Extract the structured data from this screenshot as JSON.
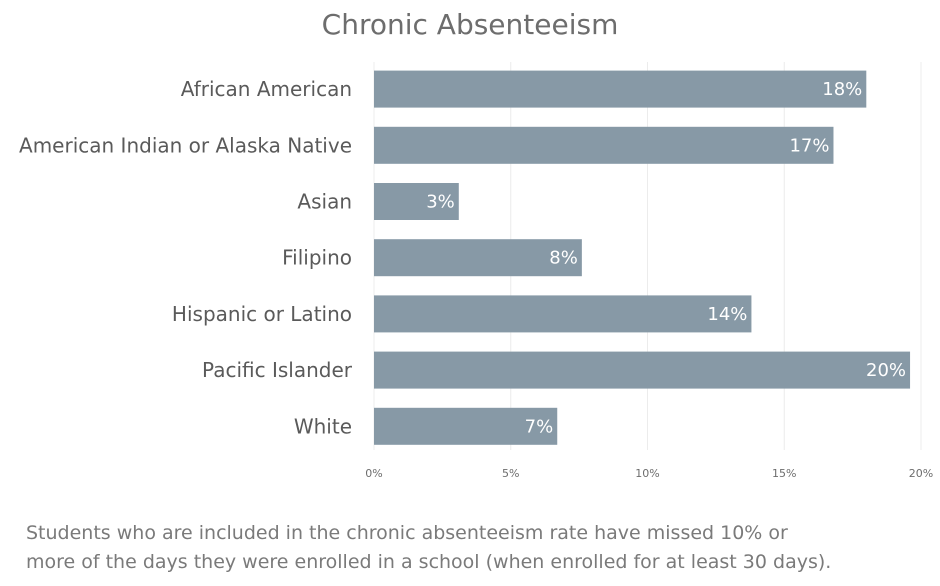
{
  "chart_data": {
    "type": "bar",
    "orientation": "horizontal",
    "title": "Chronic Absenteeism",
    "categories": [
      "African American",
      "American Indian or Alaska Native",
      "Asian",
      "Filipino",
      "Hispanic or Latino",
      "Pacific Islander",
      "White"
    ],
    "values": [
      18,
      16.8,
      3.1,
      7.6,
      13.8,
      19.6,
      6.7
    ],
    "data_labels": [
      "18%",
      "17%",
      "3%",
      "8%",
      "14%",
      "20%",
      "7%"
    ],
    "x_ticks": [
      0,
      5,
      10,
      15,
      20
    ],
    "x_tick_labels": [
      "0%",
      "5%",
      "10%",
      "15%",
      "20%"
    ],
    "xlim": [
      0,
      20
    ],
    "xlabel": "",
    "ylabel": "",
    "grid": "vertical",
    "legend": "none",
    "colors": {
      "bar": "#8799a6",
      "title": "#6d6d6d",
      "category_text": "#5a5a5a",
      "data_label": "#ffffff",
      "gridline": "#ececec"
    }
  },
  "footnote": {
    "line1": "Students who are included in the chronic absenteeism rate have missed 10% or",
    "line2": "more of the days they were enrolled in a school (when enrolled for at least 30 days)."
  }
}
